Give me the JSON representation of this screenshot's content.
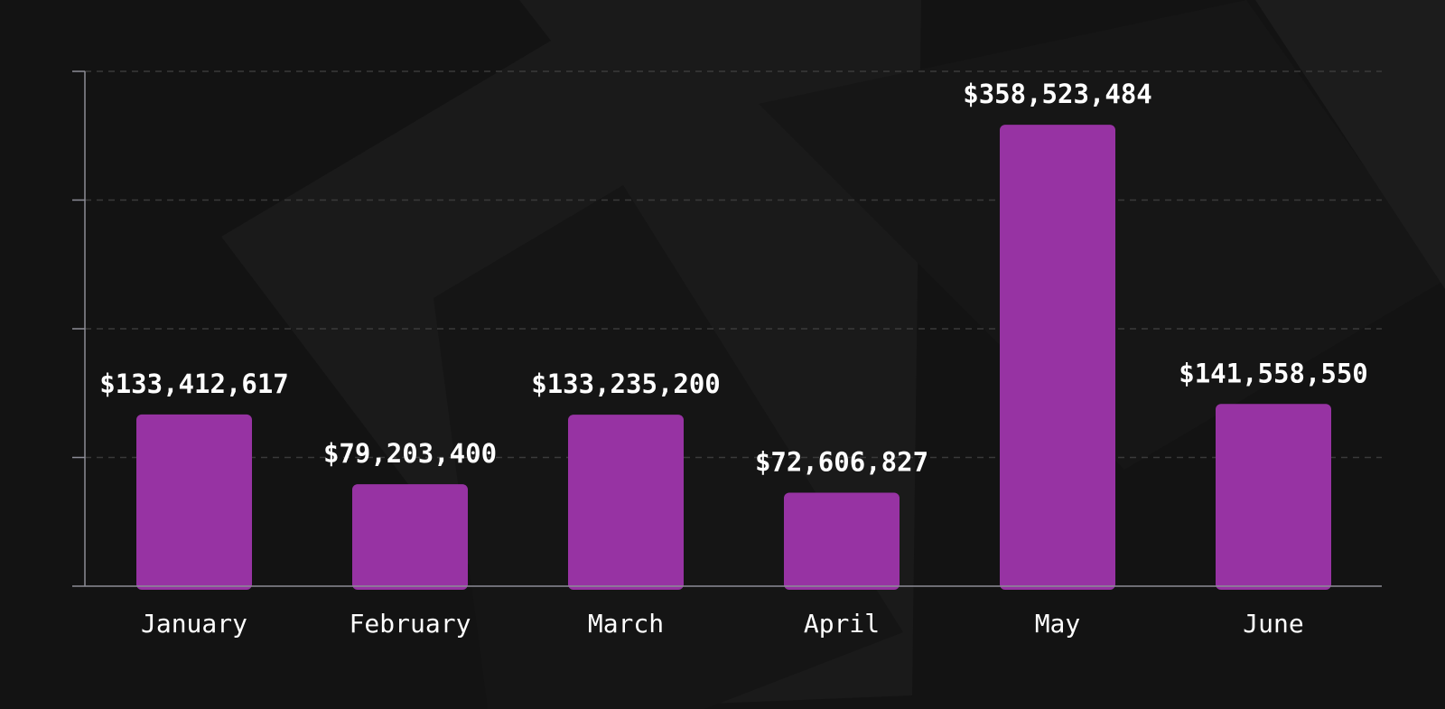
{
  "chart_data": {
    "type": "bar",
    "categories": [
      "January",
      "February",
      "March",
      "April",
      "May",
      "June"
    ],
    "values": [
      133412617,
      79203400,
      133235200,
      72606827,
      358523484,
      141558550
    ],
    "value_labels": [
      "$133,412,617",
      "$79,203,400",
      "$133,235,200",
      "$72,606,827",
      "$358,523,484",
      "$141,558,550"
    ],
    "title": "",
    "xlabel": "",
    "ylabel": "",
    "ylim": [
      0,
      400000000
    ],
    "y_gridlines": [
      100000000,
      200000000,
      300000000,
      400000000
    ],
    "y_tick_labels_shown": false,
    "grid": "horizontal-dashed",
    "legend": "none"
  },
  "colors": {
    "background": "#131313",
    "background_shape": "#1b1b1b",
    "bar": "#9733a3",
    "axis": "#8c8c96",
    "gridline": "#3a3a3a",
    "text": "#ffffff"
  }
}
